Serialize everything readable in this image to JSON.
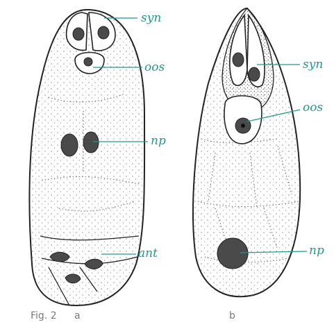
{
  "figure": {
    "caption": "Fig. 2",
    "panels": [
      {
        "id": "a",
        "label": "a",
        "annotations": [
          {
            "key": "syn",
            "text": "syn"
          },
          {
            "key": "oos",
            "text": "oos"
          },
          {
            "key": "np",
            "text": "np"
          },
          {
            "key": "ant",
            "text": "ant"
          }
        ]
      },
      {
        "id": "b",
        "label": "b",
        "annotations": [
          {
            "key": "syn",
            "text": "syn"
          },
          {
            "key": "oos",
            "text": "oos"
          },
          {
            "key": "np",
            "text": "np"
          }
        ]
      }
    ]
  },
  "colors": {
    "label": "#1f9a8e",
    "caption": "#7a7a7a",
    "line": "#222222"
  }
}
